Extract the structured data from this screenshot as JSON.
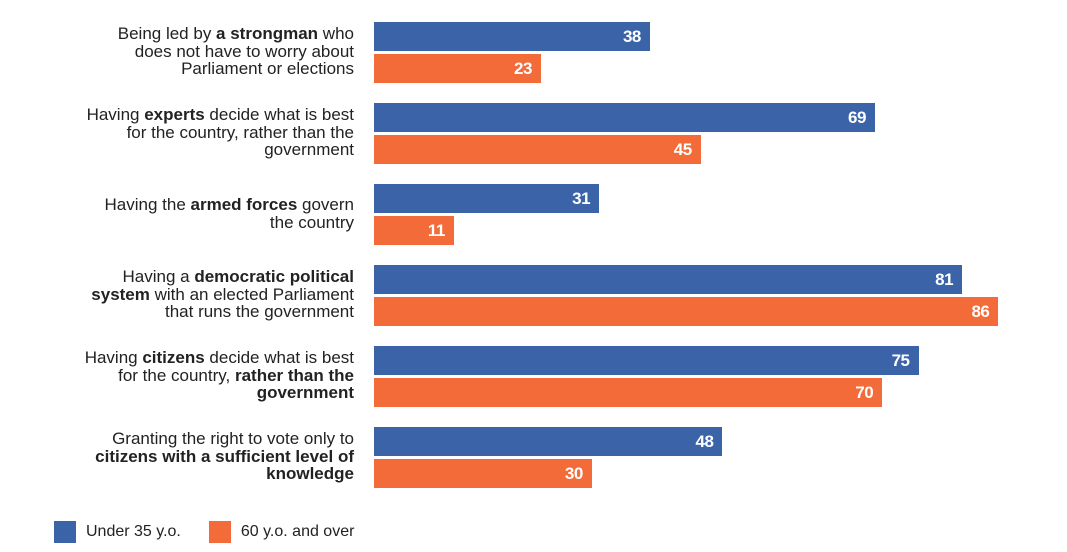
{
  "chart_data": {
    "type": "bar",
    "orientation": "horizontal",
    "title": "",
    "xlabel": "",
    "ylabel": "",
    "xlim": [
      0,
      100
    ],
    "grid": false,
    "legend_position": "bottom-left",
    "categories": [
      [
        {
          "t": "Being led by ",
          "b": false
        },
        {
          "t": "a strongman",
          "b": true
        },
        {
          "t": " who\ndoes not have to worry about\nParliament or elections",
          "b": false
        }
      ],
      [
        {
          "t": "Having ",
          "b": false
        },
        {
          "t": "experts",
          "b": true
        },
        {
          "t": " decide what is best\nfor the country, rather than the\ngovernment",
          "b": false
        }
      ],
      [
        {
          "t": "Having the ",
          "b": false
        },
        {
          "t": "armed forces",
          "b": true
        },
        {
          "t": " govern\nthe country",
          "b": false
        }
      ],
      [
        {
          "t": "Having a ",
          "b": false
        },
        {
          "t": "democratic political\nsystem",
          "b": true
        },
        {
          "t": " with an elected Parliament\nthat runs the government",
          "b": false
        }
      ],
      [
        {
          "t": "Having ",
          "b": false
        },
        {
          "t": "citizens",
          "b": true
        },
        {
          "t": " decide what is best\nfor the country, ",
          "b": false
        },
        {
          "t": "rather than the\ngovernment",
          "b": true
        }
      ],
      [
        {
          "t": "Granting the right to vote only to\n",
          "b": false
        },
        {
          "t": "citizens with a sufficient level of\nknowledge",
          "b": true
        }
      ]
    ],
    "series": [
      {
        "name": "Under 35 y.o.",
        "color": "#3b63a8",
        "values": [
          38,
          69,
          31,
          81,
          75,
          48
        ]
      },
      {
        "name": "60 y.o. and over",
        "color": "#f46b3a",
        "values": [
          23,
          45,
          11,
          86,
          70,
          30
        ]
      }
    ]
  }
}
